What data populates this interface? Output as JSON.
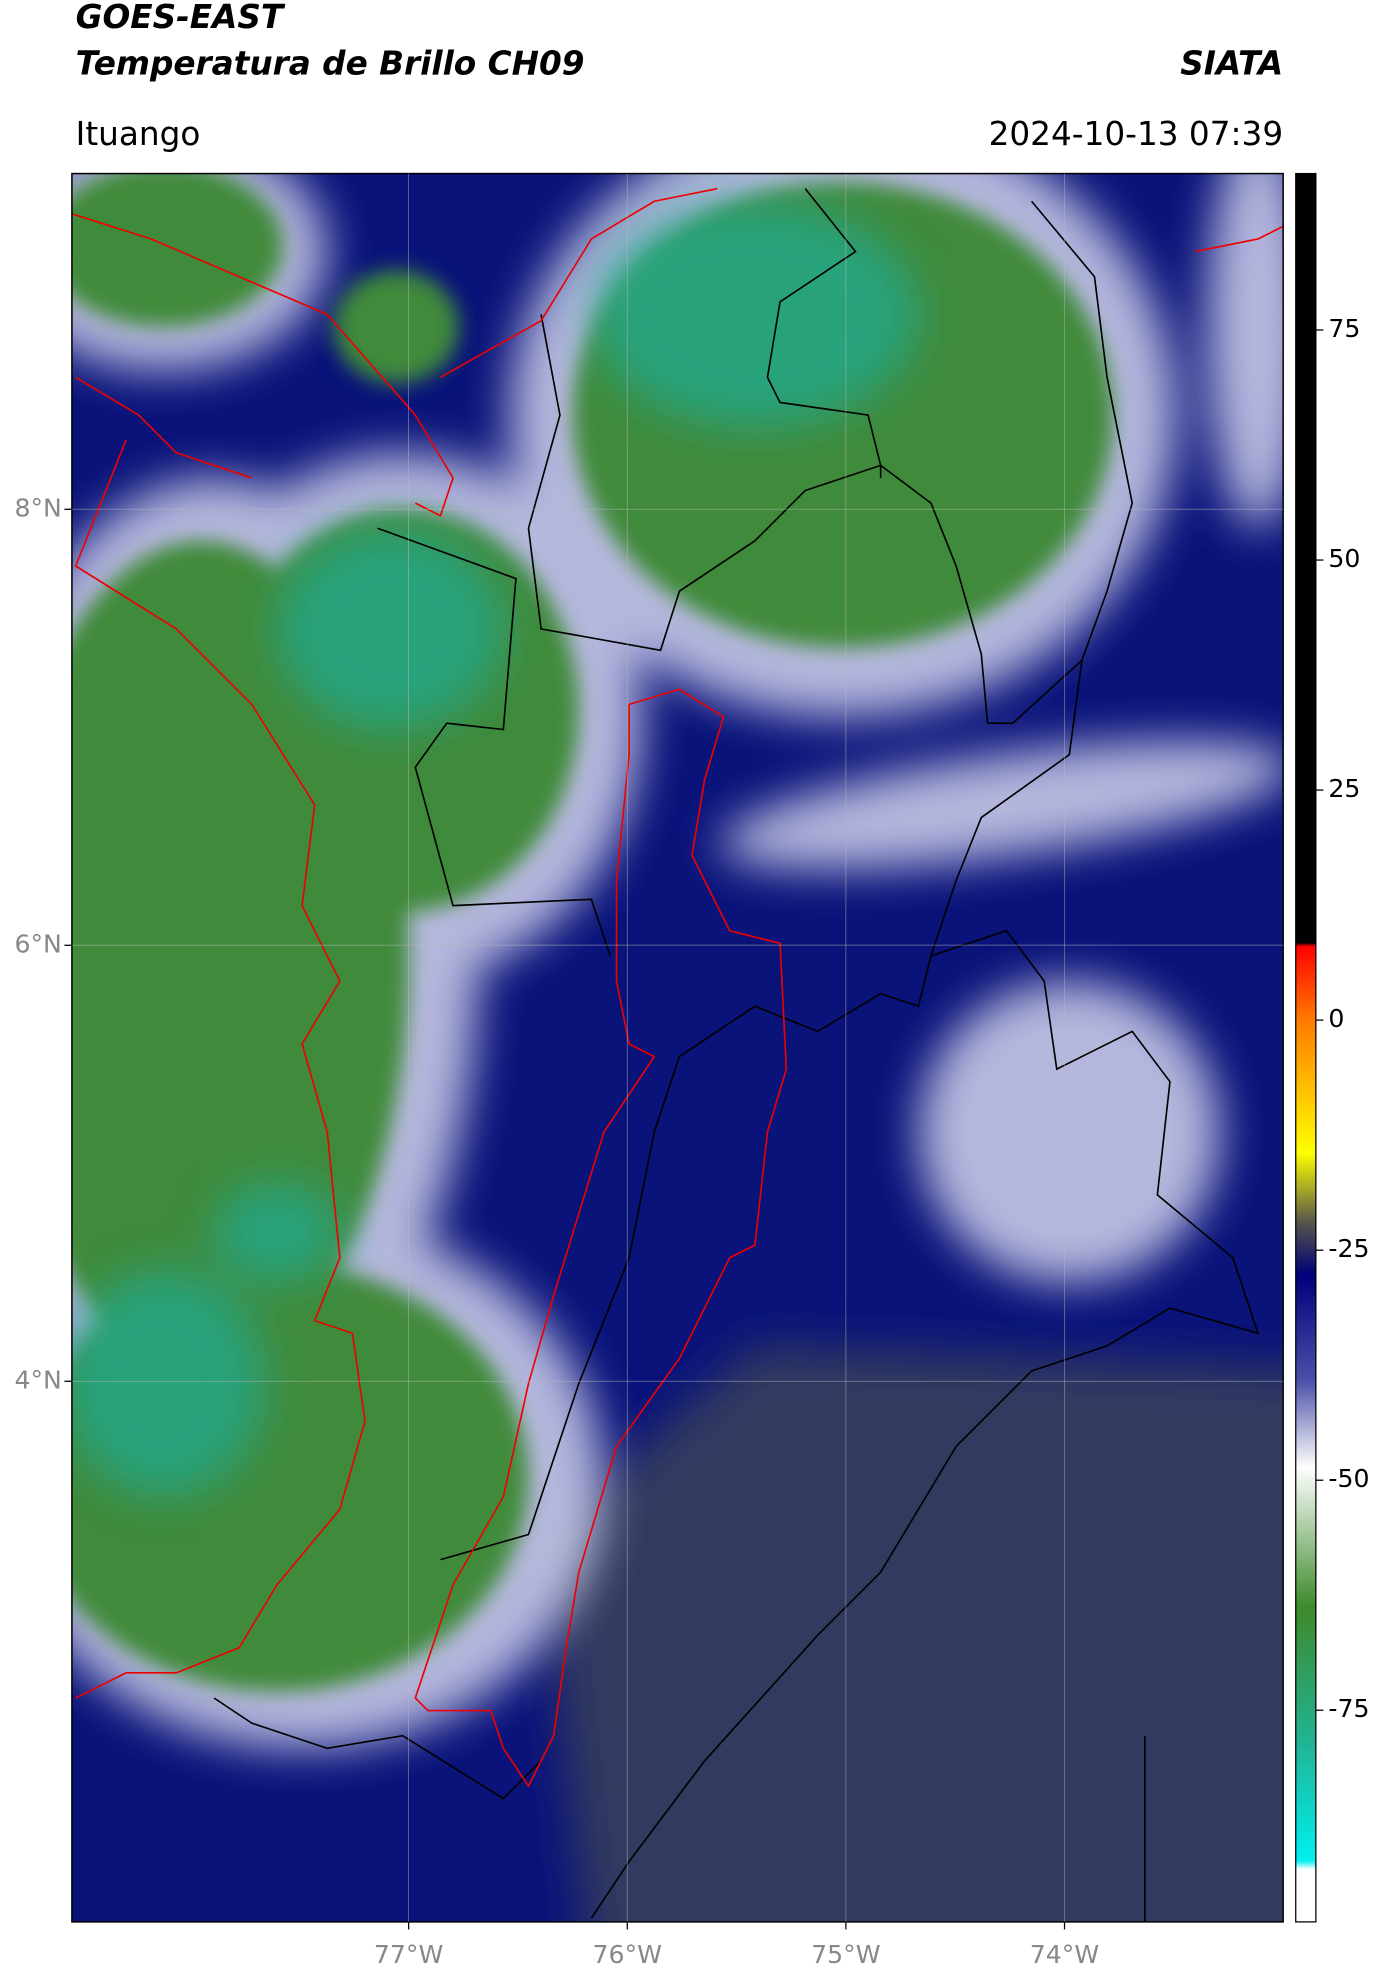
{
  "header": {
    "title": "GOES-EAST",
    "subtitle": "Temperatura de Brillo CH09",
    "agency": "SIATA",
    "location": "Ituango",
    "datetime": "2024-10-13 07:39"
  },
  "map": {
    "xlim": [
      -78.54,
      -73.0
    ],
    "ylim": [
      1.52,
      9.54
    ],
    "xticks": [
      {
        "value": -77,
        "label": "77°W"
      },
      {
        "value": -76,
        "label": "76°W"
      },
      {
        "value": -75,
        "label": "75°W"
      },
      {
        "value": -74,
        "label": "74°W"
      }
    ],
    "yticks": [
      {
        "value": 8,
        "label": "8°N"
      },
      {
        "value": 6,
        "label": "6°N"
      },
      {
        "value": 4,
        "label": "4°N"
      }
    ],
    "grid": true,
    "colorbar": {
      "lim": [
        -98,
        92
      ],
      "ticks": [
        75,
        50,
        25,
        0,
        -25,
        -50,
        -75
      ]
    }
  }
}
